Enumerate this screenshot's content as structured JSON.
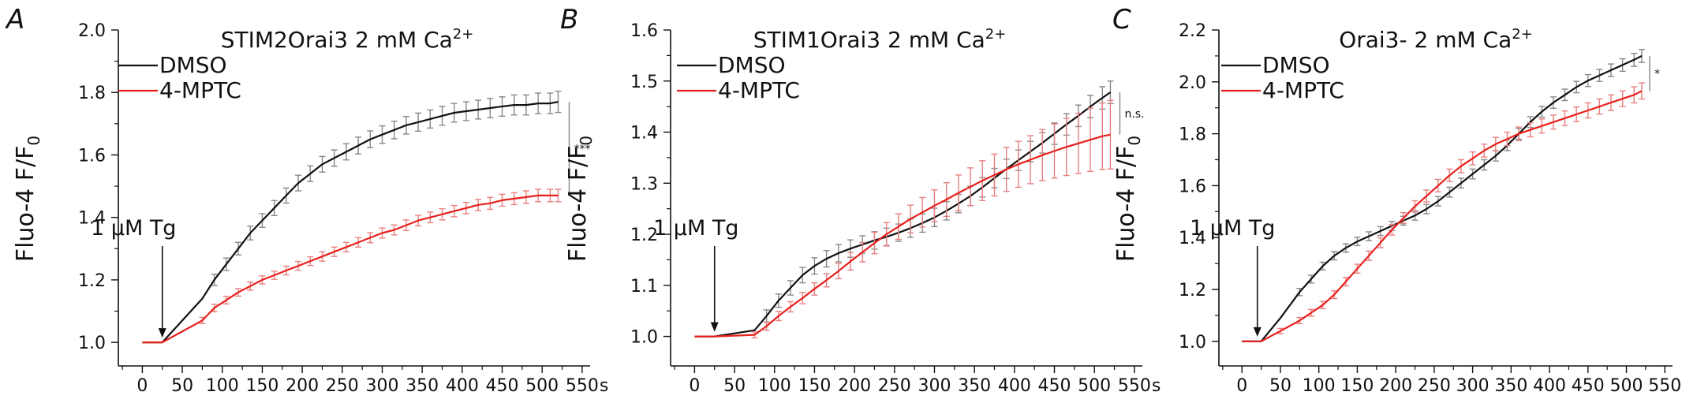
{
  "chart_data": [
    {
      "type": "line",
      "panel": "A",
      "title_main": "STIM2Orai3  2 mM Ca",
      "title_sup": "2+",
      "ylabel_main": "Fluo-4  F/F",
      "ylabel_sub": "0",
      "x_unit": "s",
      "xlim": [
        -30,
        560
      ],
      "ylim": [
        0.97,
        2.0
      ],
      "x_ticks": [
        0,
        50,
        100,
        150,
        200,
        250,
        300,
        350,
        400,
        450,
        500,
        550
      ],
      "y_ticks": [
        1.0,
        1.2,
        1.4,
        1.6,
        1.8,
        2.0
      ],
      "y_tick_labels": [
        "1.0",
        "1.2",
        "1.4",
        "1.6",
        "1.8",
        "2.0"
      ],
      "annotation": "1 µM Tg",
      "annotation_x": 25,
      "significance": "***",
      "legend": [
        "DMSO",
        "4-MPTC"
      ],
      "series": [
        {
          "name": "DMSO",
          "color": "#111111",
          "err_color": "#888888",
          "x": [
            0,
            25,
            75,
            90,
            105,
            120,
            135,
            150,
            165,
            180,
            195,
            210,
            225,
            240,
            255,
            270,
            285,
            300,
            315,
            330,
            345,
            360,
            375,
            390,
            405,
            420,
            435,
            450,
            465,
            480,
            495,
            510,
            520
          ],
          "y": [
            1.0,
            1.0,
            1.14,
            1.2,
            1.25,
            1.3,
            1.35,
            1.39,
            1.43,
            1.47,
            1.51,
            1.54,
            1.57,
            1.59,
            1.61,
            1.63,
            1.65,
            1.665,
            1.68,
            1.695,
            1.705,
            1.715,
            1.725,
            1.735,
            1.74,
            1.745,
            1.75,
            1.755,
            1.76,
            1.76,
            1.765,
            1.765,
            1.77
          ],
          "err": [
            0,
            0,
            0.015,
            0.018,
            0.02,
            0.02,
            0.022,
            0.022,
            0.024,
            0.024,
            0.025,
            0.025,
            0.025,
            0.026,
            0.026,
            0.027,
            0.027,
            0.028,
            0.028,
            0.028,
            0.029,
            0.029,
            0.03,
            0.03,
            0.03,
            0.03,
            0.031,
            0.031,
            0.032,
            0.032,
            0.033,
            0.033,
            0.034
          ],
          "err_start": 3
        },
        {
          "name": "4-MPTC",
          "color": "#e8201c",
          "err_color": "#e88080",
          "x": [
            0,
            25,
            75,
            90,
            105,
            120,
            135,
            150,
            165,
            180,
            195,
            210,
            225,
            240,
            255,
            270,
            285,
            300,
            315,
            330,
            345,
            360,
            375,
            390,
            405,
            420,
            435,
            450,
            465,
            480,
            495,
            510,
            520
          ],
          "y": [
            1.0,
            1.0,
            1.07,
            1.11,
            1.135,
            1.16,
            1.18,
            1.2,
            1.215,
            1.23,
            1.245,
            1.26,
            1.275,
            1.29,
            1.305,
            1.32,
            1.335,
            1.35,
            1.36,
            1.375,
            1.39,
            1.4,
            1.41,
            1.42,
            1.43,
            1.44,
            1.445,
            1.455,
            1.46,
            1.465,
            1.47,
            1.47,
            1.47
          ],
          "err": [
            0,
            0,
            0.01,
            0.012,
            0.012,
            0.012,
            0.013,
            0.013,
            0.013,
            0.014,
            0.014,
            0.014,
            0.015,
            0.015,
            0.015,
            0.015,
            0.016,
            0.016,
            0.016,
            0.017,
            0.017,
            0.017,
            0.018,
            0.018,
            0.018,
            0.018,
            0.019,
            0.019,
            0.019,
            0.02,
            0.02,
            0.02,
            0.02
          ],
          "err_start": 2
        }
      ]
    },
    {
      "type": "line",
      "panel": "B",
      "title_main": "STIM1Orai3 2 mM Ca",
      "title_sup": "2+",
      "ylabel_main": "Fluo-4  F/F",
      "ylabel_sub": "0",
      "x_unit": "s",
      "xlim": [
        -30,
        560
      ],
      "ylim": [
        0.97,
        1.6
      ],
      "x_ticks": [
        0,
        50,
        100,
        150,
        200,
        250,
        300,
        350,
        400,
        450,
        500,
        550
      ],
      "y_ticks": [
        1.0,
        1.1,
        1.2,
        1.3,
        1.4,
        1.5,
        1.6
      ],
      "y_tick_labels": [
        "1.0",
        "1.1",
        "1.2",
        "1.3",
        "1.4",
        "1.5",
        "1.6"
      ],
      "annotation": "1 µM Tg",
      "annotation_x": 25,
      "significance": "n.s.",
      "legend": [
        "DMSO",
        "4-MPTC"
      ],
      "series": [
        {
          "name": "DMSO",
          "color": "#111111",
          "err_color": "#888888",
          "x": [
            0,
            25,
            75,
            90,
            105,
            120,
            135,
            150,
            165,
            180,
            195,
            210,
            225,
            240,
            255,
            270,
            285,
            300,
            315,
            330,
            345,
            360,
            375,
            390,
            405,
            420,
            435,
            450,
            465,
            480,
            495,
            510,
            520
          ],
          "y": [
            1.0,
            1.0,
            1.012,
            1.04,
            1.07,
            1.095,
            1.12,
            1.138,
            1.152,
            1.163,
            1.172,
            1.18,
            1.188,
            1.195,
            1.203,
            1.212,
            1.222,
            1.233,
            1.246,
            1.26,
            1.275,
            1.292,
            1.31,
            1.328,
            1.345,
            1.362,
            1.379,
            1.397,
            1.415,
            1.432,
            1.45,
            1.467,
            1.478
          ],
          "err": [
            0,
            0,
            0.006,
            0.012,
            0.013,
            0.014,
            0.015,
            0.016,
            0.016,
            0.017,
            0.017,
            0.017,
            0.017,
            0.017,
            0.017,
            0.018,
            0.018,
            0.018,
            0.018,
            0.018,
            0.019,
            0.019,
            0.019,
            0.019,
            0.02,
            0.02,
            0.02,
            0.021,
            0.021,
            0.021,
            0.022,
            0.022,
            0.022
          ],
          "err_start": 3
        },
        {
          "name": "4-MPTC",
          "color": "#e8201c",
          "err_color": "#e88080",
          "x": [
            0,
            25,
            75,
            90,
            105,
            120,
            135,
            150,
            165,
            180,
            195,
            210,
            225,
            240,
            255,
            270,
            285,
            300,
            315,
            330,
            345,
            360,
            375,
            390,
            405,
            420,
            435,
            450,
            465,
            480,
            495,
            510,
            520
          ],
          "y": [
            1.0,
            1.0,
            1.003,
            1.02,
            1.04,
            1.058,
            1.075,
            1.093,
            1.11,
            1.128,
            1.147,
            1.165,
            1.183,
            1.2,
            1.215,
            1.23,
            1.243,
            1.256,
            1.268,
            1.281,
            1.293,
            1.305,
            1.316,
            1.327,
            1.337,
            1.346,
            1.355,
            1.363,
            1.371,
            1.378,
            1.385,
            1.392,
            1.395
          ],
          "err": [
            0,
            0,
            0.006,
            0.008,
            0.009,
            0.01,
            0.011,
            0.012,
            0.013,
            0.015,
            0.017,
            0.019,
            0.021,
            0.023,
            0.025,
            0.027,
            0.029,
            0.031,
            0.033,
            0.035,
            0.037,
            0.039,
            0.041,
            0.043,
            0.045,
            0.047,
            0.05,
            0.053,
            0.056,
            0.059,
            0.062,
            0.065,
            0.067
          ],
          "err_start": 2
        }
      ]
    },
    {
      "type": "line",
      "panel": "C",
      "title_main": "Orai3-  2 mM Ca",
      "title_sup": "2+",
      "ylabel_main": "Fluo-4  F/F",
      "ylabel_sub": "0",
      "x_unit": "s",
      "xlim": [
        -30,
        560
      ],
      "ylim": [
        0.96,
        2.2
      ],
      "x_ticks": [
        0,
        50,
        100,
        150,
        200,
        250,
        300,
        350,
        400,
        450,
        500,
        550
      ],
      "y_ticks": [
        1.0,
        1.2,
        1.4,
        1.6,
        1.8,
        2.0,
        2.2
      ],
      "y_tick_labels": [
        "1.0",
        "1.2",
        "1.4",
        "1.6",
        "1.8",
        "2.0",
        "2.2"
      ],
      "annotation": "1 µM Tg",
      "annotation_x": 20,
      "significance": "*",
      "legend": [
        "DMSO",
        "4-MPTC"
      ],
      "series": [
        {
          "name": "DMSO",
          "color": "#111111",
          "err_color": "#888888",
          "x": [
            0,
            25,
            50,
            75,
            90,
            105,
            120,
            135,
            150,
            165,
            180,
            195,
            210,
            225,
            240,
            255,
            270,
            285,
            300,
            315,
            330,
            345,
            360,
            375,
            390,
            405,
            420,
            435,
            450,
            465,
            480,
            495,
            510,
            520
          ],
          "y": [
            1.0,
            1.0,
            1.09,
            1.19,
            1.24,
            1.29,
            1.33,
            1.36,
            1.385,
            1.405,
            1.425,
            1.445,
            1.465,
            1.485,
            1.51,
            1.54,
            1.575,
            1.61,
            1.645,
            1.68,
            1.715,
            1.755,
            1.8,
            1.845,
            1.885,
            1.92,
            1.95,
            1.98,
            2.005,
            2.025,
            2.045,
            2.065,
            2.085,
            2.1
          ],
          "err": [
            0,
            0,
            0.012,
            0.014,
            0.015,
            0.015,
            0.016,
            0.016,
            0.016,
            0.017,
            0.017,
            0.017,
            0.017,
            0.018,
            0.018,
            0.018,
            0.019,
            0.019,
            0.019,
            0.02,
            0.02,
            0.02,
            0.021,
            0.021,
            0.021,
            0.022,
            0.022,
            0.022,
            0.023,
            0.023,
            0.024,
            0.024,
            0.025,
            0.025
          ],
          "err_start": 3
        },
        {
          "name": "4-MPTC",
          "color": "#e8201c",
          "err_color": "#e88080",
          "x": [
            0,
            25,
            50,
            75,
            90,
            105,
            120,
            135,
            150,
            165,
            180,
            195,
            210,
            225,
            240,
            255,
            270,
            285,
            300,
            315,
            330,
            345,
            360,
            375,
            390,
            405,
            420,
            435,
            450,
            465,
            480,
            495,
            510,
            520
          ],
          "y": [
            1.0,
            1.0,
            1.04,
            1.08,
            1.11,
            1.14,
            1.18,
            1.23,
            1.28,
            1.33,
            1.38,
            1.43,
            1.475,
            1.52,
            1.56,
            1.6,
            1.64,
            1.675,
            1.705,
            1.735,
            1.76,
            1.78,
            1.8,
            1.815,
            1.83,
            1.845,
            1.86,
            1.875,
            1.89,
            1.905,
            1.92,
            1.935,
            1.95,
            1.965
          ],
          "err": [
            0,
            0,
            0.01,
            0.012,
            0.013,
            0.014,
            0.015,
            0.016,
            0.017,
            0.018,
            0.019,
            0.02,
            0.021,
            0.022,
            0.023,
            0.024,
            0.024,
            0.025,
            0.025,
            0.025,
            0.026,
            0.026,
            0.026,
            0.027,
            0.027,
            0.027,
            0.028,
            0.028,
            0.029,
            0.029,
            0.03,
            0.03,
            0.031,
            0.031
          ],
          "err_start": 2
        }
      ]
    }
  ]
}
